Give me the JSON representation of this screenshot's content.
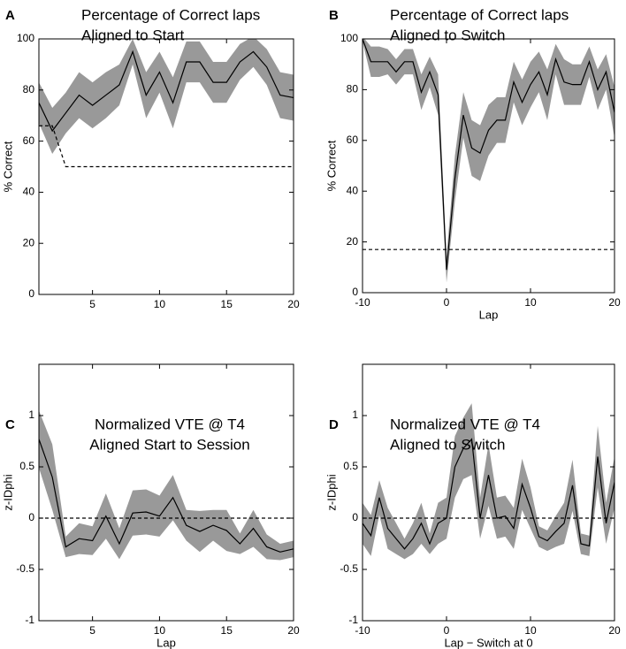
{
  "chart_data": [
    {
      "type": "line",
      "panel": "A",
      "title": "Percentage of Correct laps",
      "subtitle": "Aligned to Start",
      "y_label": "% Correct",
      "x": [
        1,
        2,
        3,
        4,
        5,
        6,
        7,
        8,
        9,
        10,
        11,
        12,
        13,
        14,
        15,
        16,
        17,
        18,
        19,
        20
      ],
      "series": [
        {
          "color": "#000000",
          "band_color": "#999999",
          "values": [
            75,
            64,
            71,
            78,
            74,
            78,
            82,
            95,
            78,
            87,
            75,
            91,
            91,
            83,
            83,
            91,
            95,
            89,
            78,
            77
          ],
          "errors": [
            8,
            9,
            8,
            9,
            9,
            9,
            8,
            5,
            9,
            8,
            10,
            8,
            8,
            8,
            8,
            7,
            6,
            7,
            9,
            9
          ]
        },
        {
          "color": "#000000",
          "style": "dashed",
          "values": [
            66,
            66,
            50,
            50,
            50,
            50,
            50,
            50,
            50,
            50,
            50,
            50,
            50,
            50,
            50,
            50,
            50,
            50,
            50,
            50
          ]
        }
      ],
      "xlim": [
        1,
        20
      ],
      "xticks": [
        5,
        10,
        15,
        20
      ],
      "ylim": [
        0,
        100
      ],
      "yticks": [
        0,
        20,
        40,
        60,
        80,
        100
      ]
    },
    {
      "type": "line",
      "panel": "B",
      "title": "Percentage of Correct laps",
      "subtitle": "Aligned to Switch",
      "y_label": "% Correct",
      "x_label": "Lap",
      "x": [
        -10,
        -9,
        -8,
        -7,
        -6,
        -5,
        -4,
        -3,
        -2,
        -1,
        0,
        1,
        2,
        3,
        4,
        5,
        6,
        7,
        8,
        9,
        10,
        11,
        12,
        13,
        14,
        15,
        16,
        17,
        18,
        19,
        20
      ],
      "series": [
        {
          "color": "#000000",
          "band_color": "#999999",
          "values": [
            100,
            91,
            91,
            91,
            87,
            91,
            91,
            79,
            87,
            78,
            9,
            45,
            70,
            57,
            55,
            64,
            68,
            68,
            83,
            75,
            82,
            87,
            78,
            92,
            83,
            82,
            82,
            91,
            80,
            87,
            71
          ],
          "errors": [
            1,
            6,
            6,
            5,
            5,
            5,
            5,
            7,
            6,
            8,
            5,
            9,
            9,
            11,
            11,
            10,
            9,
            9,
            8,
            9,
            9,
            8,
            10,
            6,
            9,
            8,
            8,
            6,
            8,
            7,
            10
          ]
        },
        {
          "color": "#000000",
          "style": "dashed",
          "values": [
            17,
            17,
            17,
            17,
            17,
            17,
            17,
            17,
            17,
            17,
            17,
            17,
            17,
            17,
            17,
            17,
            17,
            17,
            17,
            17,
            17,
            17,
            17,
            17,
            17,
            17,
            17,
            17,
            17,
            17,
            17
          ]
        }
      ],
      "xlim": [
        -10,
        20
      ],
      "xticks": [
        -10,
        0,
        10,
        20
      ],
      "ylim": [
        0,
        100
      ],
      "yticks": [
        0,
        20,
        40,
        60,
        80,
        100
      ]
    },
    {
      "type": "line",
      "panel": "C",
      "title": "Normalized VTE @ T4",
      "subtitle": "Aligned Start to Session",
      "y_label": "z-IDphi",
      "x_label": "Lap",
      "x": [
        1,
        2,
        3,
        4,
        5,
        6,
        7,
        8,
        9,
        10,
        11,
        12,
        13,
        14,
        15,
        16,
        17,
        18,
        19,
        20
      ],
      "series": [
        {
          "color": "#000000",
          "band_color": "#999999",
          "values": [
            0.77,
            0.4,
            -0.28,
            -0.2,
            -0.22,
            0.02,
            -0.25,
            0.05,
            0.06,
            0.02,
            0.2,
            -0.07,
            -0.13,
            -0.07,
            -0.12,
            -0.25,
            -0.1,
            -0.28,
            -0.33,
            -0.3
          ],
          "errors": [
            0.28,
            0.32,
            0.1,
            0.15,
            0.14,
            0.22,
            0.15,
            0.22,
            0.22,
            0.2,
            0.22,
            0.15,
            0.2,
            0.15,
            0.2,
            0.1,
            0.18,
            0.12,
            0.08,
            0.08
          ]
        },
        {
          "color": "#000000",
          "style": "dashed",
          "values": [
            0,
            0,
            0,
            0,
            0,
            0,
            0,
            0,
            0,
            0,
            0,
            0,
            0,
            0,
            0,
            0,
            0,
            0,
            0,
            0
          ]
        }
      ],
      "xlim": [
        1,
        20
      ],
      "xticks": [
        5,
        10,
        15,
        20
      ],
      "ylim": [
        -1,
        1.5
      ],
      "yticks": [
        -1,
        -0.5,
        0,
        0.5,
        1
      ]
    },
    {
      "type": "line",
      "panel": "D",
      "title": "Normalized VTE @ T4",
      "subtitle": "Aligned to Switch",
      "y_label": "z-IDphi",
      "x_label": "Lap − Switch at 0",
      "x": [
        -10,
        -9,
        -8,
        -7,
        -6,
        -5,
        -4,
        -3,
        -2,
        -1,
        0,
        1,
        2,
        3,
        4,
        5,
        6,
        7,
        8,
        9,
        10,
        11,
        12,
        13,
        14,
        15,
        16,
        17,
        18,
        19,
        20
      ],
      "series": [
        {
          "color": "#000000",
          "band_color": "#999999",
          "values": [
            -0.05,
            -0.17,
            0.2,
            -0.1,
            -0.2,
            -0.3,
            -0.2,
            -0.05,
            -0.25,
            -0.05,
            0.0,
            0.5,
            0.68,
            0.77,
            0.0,
            0.42,
            0.0,
            0.02,
            -0.1,
            0.33,
            0.1,
            -0.18,
            -0.22,
            -0.13,
            -0.05,
            0.32,
            -0.25,
            -0.27,
            0.6,
            -0.05,
            0.35
          ],
          "errors": [
            0.2,
            0.2,
            0.17,
            0.2,
            0.15,
            0.1,
            0.15,
            0.2,
            0.1,
            0.2,
            0.2,
            0.3,
            0.3,
            0.35,
            0.2,
            0.3,
            0.2,
            0.2,
            0.2,
            0.25,
            0.2,
            0.1,
            0.1,
            0.15,
            0.2,
            0.25,
            0.1,
            0.1,
            0.3,
            0.2,
            0.25
          ]
        },
        {
          "color": "#000000",
          "style": "dashed",
          "values": [
            0,
            0,
            0,
            0,
            0,
            0,
            0,
            0,
            0,
            0,
            0,
            0,
            0,
            0,
            0,
            0,
            0,
            0,
            0,
            0,
            0,
            0,
            0,
            0,
            0,
            0,
            0,
            0,
            0,
            0,
            0
          ]
        }
      ],
      "xlim": [
        -10,
        20
      ],
      "xticks": [
        -10,
        0,
        10,
        20
      ],
      "ylim": [
        -1,
        1.5
      ],
      "yticks": [
        -1,
        -0.5,
        0,
        0.5,
        1
      ]
    }
  ]
}
